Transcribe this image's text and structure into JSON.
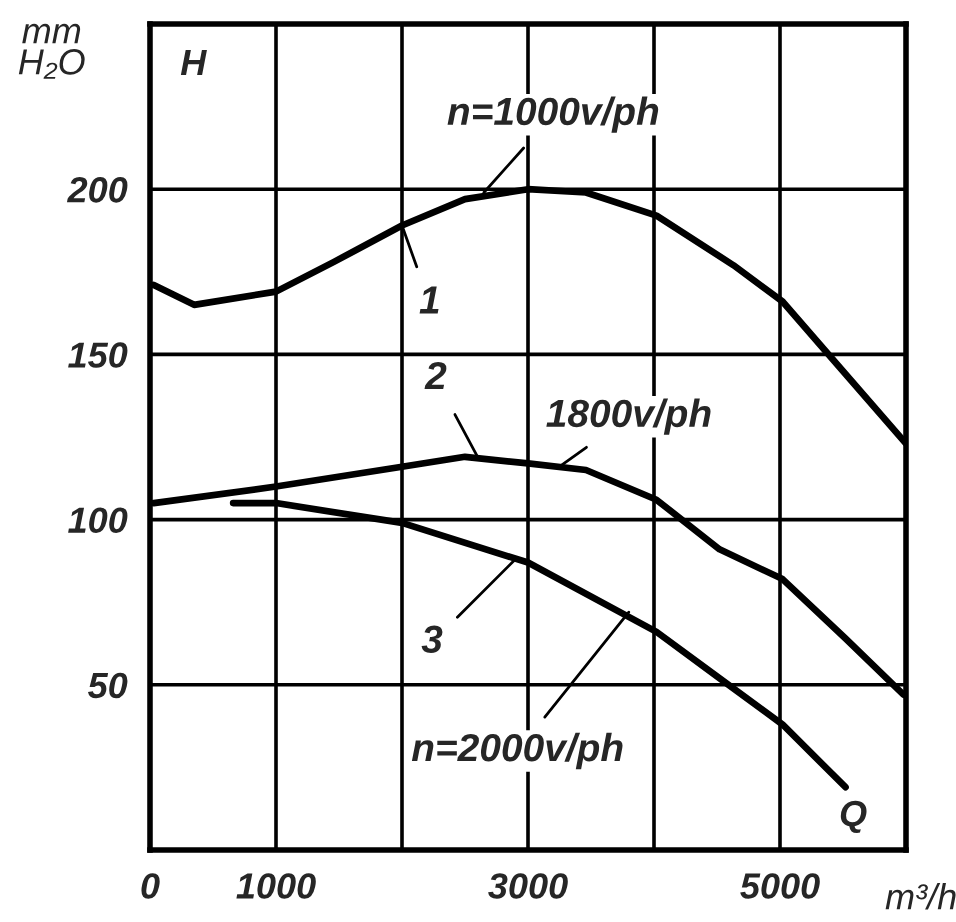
{
  "chart_data": {
    "type": "line",
    "xlabel": "m³/h",
    "ylabel": "mm\nH₂O",
    "xlim": [
      0,
      6000
    ],
    "ylim": [
      0,
      250
    ],
    "xticks": [
      0,
      1000,
      {
        "value": 2000,
        "label": null
      },
      3000,
      {
        "value": 4000,
        "label": null
      },
      5000
    ],
    "yticks": [
      50,
      100,
      150,
      200
    ],
    "grid": true,
    "legend": false,
    "marker": "none",
    "line_style": "solid",
    "series": [
      {
        "color": "#000000",
        "x": [
          30,
          350,
          1000,
          1460,
          2000,
          2500,
          3000,
          3460,
          4020,
          4630,
          5020,
          5430,
          6000
        ],
        "values": [
          171,
          165,
          169,
          178,
          189,
          197,
          200,
          199,
          192,
          177,
          166,
          148,
          123
        ]
      },
      {
        "color": "#000000",
        "x": [
          30,
          1000,
          2000,
          2500,
          3000,
          3460,
          4020,
          4520,
          5020,
          5520,
          5980
        ],
        "values": [
          105,
          110,
          116,
          119,
          117,
          115,
          106,
          91,
          82,
          64,
          47
        ]
      },
      {
        "color": "#000000",
        "x": [
          660,
          1000,
          2000,
          3000,
          4020,
          4520,
          5020,
          5520
        ],
        "values": [
          105,
          105,
          99,
          87,
          66,
          52,
          38,
          19
        ]
      }
    ],
    "annotations": [
      "H",
      "Q",
      {
        "text": "n=1000v/ph",
        "x": 2650,
        "y": 199
      },
      {
        "text": "1",
        "x": 2000,
        "y": 189
      },
      {
        "text": "2",
        "x": 2600,
        "y": 119
      },
      {
        "text": "1800v/ph",
        "x": 3250,
        "y": 116
      },
      {
        "text": "3",
        "x": 2900,
        "y": 88
      },
      {
        "text": "n=2000v/ph",
        "x": 3800,
        "y": 72
      }
    ]
  }
}
